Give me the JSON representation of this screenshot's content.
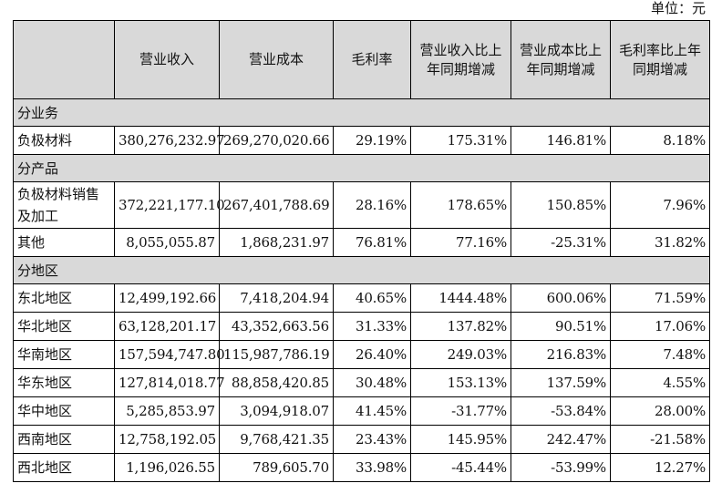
{
  "unit_label": "单位：元",
  "header": [
    "",
    "营业收入",
    "营业成本",
    "毛利率",
    "营业收入比上年同期增减",
    "营业成本比上年同期增减",
    "毛利率比上年同期增减"
  ],
  "sections": [
    {
      "title": "分业务",
      "rows": [
        {
          "label": "负极材料",
          "values": [
            "380,276,232.97",
            "269,270,020.66",
            "29.19%",
            "175.31%",
            "146.81%",
            "8.18%"
          ]
        }
      ]
    },
    {
      "title": "分产品",
      "rows": [
        {
          "label": "负极材料销售及加工",
          "values": [
            "372,221,177.10",
            "267,401,788.69",
            "28.16%",
            "178.65%",
            "150.85%",
            "7.96%"
          ]
        },
        {
          "label": "其他",
          "values": [
            "8,055,055.87",
            "1,868,231.97",
            "76.81%",
            "77.16%",
            "-25.31%",
            "31.82%"
          ]
        }
      ]
    },
    {
      "title": "分地区",
      "rows": [
        {
          "label": "东北地区",
          "values": [
            "12,499,192.66",
            "7,418,204.94",
            "40.65%",
            "1444.48%",
            "600.06%",
            "71.59%"
          ]
        },
        {
          "label": "华北地区",
          "values": [
            "63,128,201.17",
            "43,352,663.56",
            "31.33%",
            "137.82%",
            "90.51%",
            "17.06%"
          ]
        },
        {
          "label": "华南地区",
          "values": [
            "157,594,747.80",
            "115,987,786.19",
            "26.40%",
            "249.03%",
            "216.83%",
            "7.48%"
          ]
        },
        {
          "label": "华东地区",
          "values": [
            "127,814,018.77",
            "88,858,420.85",
            "30.48%",
            "153.13%",
            "137.59%",
            "4.55%"
          ]
        },
        {
          "label": "华中地区",
          "values": [
            "5,285,853.97",
            "3,094,918.07",
            "41.45%",
            "-31.77%",
            "-53.84%",
            "28.00%"
          ]
        },
        {
          "label": "西南地区",
          "values": [
            "12,758,192.05",
            "9,768,421.35",
            "23.43%",
            "145.95%",
            "242.47%",
            "-21.58%"
          ]
        },
        {
          "label": "西北地区",
          "values": [
            "1,196,026.55",
            "789,605.70",
            "33.98%",
            "-45.44%",
            "-53.99%",
            "12.27%"
          ]
        }
      ]
    }
  ]
}
